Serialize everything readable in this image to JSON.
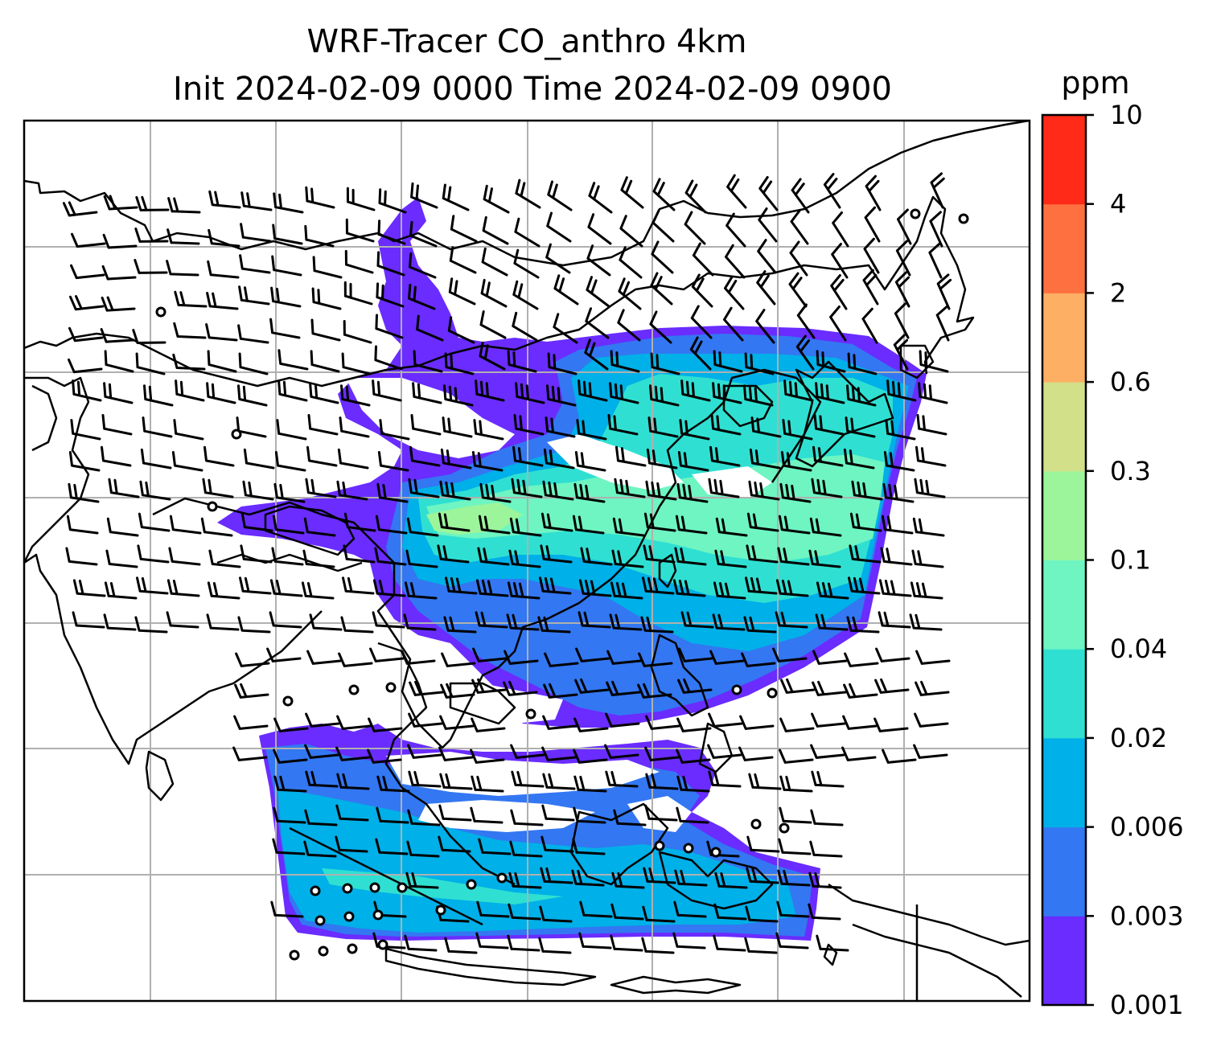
{
  "title": {
    "line1": "WRF-Tracer CO_anthro 4km",
    "line2": "Init 2024-02-09 0000 Time 2024-02-09 0900"
  },
  "colorbar": {
    "unit": "ppm",
    "levels": [
      "0.001",
      "0.003",
      "0.006",
      "0.02",
      "0.04",
      "0.1",
      "0.3",
      "0.6",
      "2",
      "4",
      "10"
    ],
    "colors": [
      "#6a2cff",
      "#3377f2",
      "#00b0e8",
      "#2fe0d2",
      "#6ef5c2",
      "#9cf59a",
      "#d2e08a",
      "#fdb064",
      "#ff7040",
      "#ff2a18"
    ]
  },
  "map": {
    "gridlines": true,
    "gridline_color": "#b0b0b0",
    "coastline_color": "#000000"
  }
}
